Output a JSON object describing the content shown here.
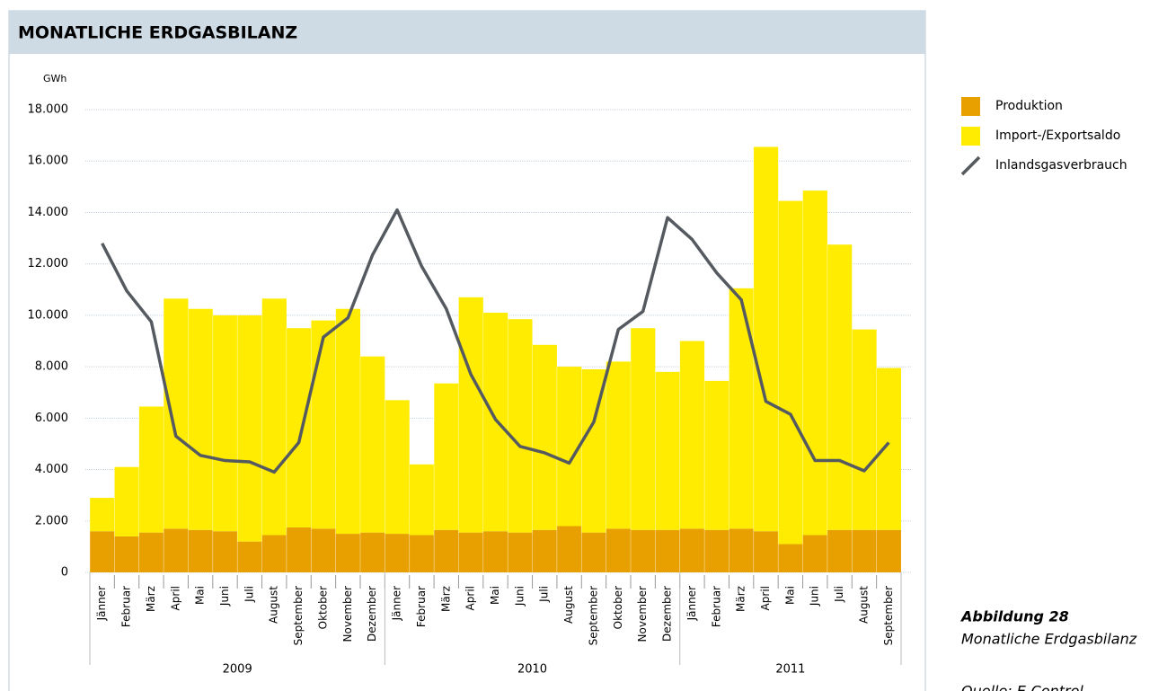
{
  "chart_data": {
    "type": "stacked-bar-line",
    "title": "MONATLICHE ERDGASBILANZ",
    "y_unit": "GWh",
    "categories": [
      "Jänner",
      "Februar",
      "März",
      "April",
      "Mai",
      "Juni",
      "Juli",
      "August",
      "September",
      "Oktober",
      "November",
      "Dezember",
      "Jänner",
      "Februar",
      "März",
      "April",
      "Mai",
      "Juni",
      "Juli",
      "August",
      "September",
      "Oktober",
      "November",
      "Dezember",
      "Jänner",
      "Februar",
      "März",
      "April",
      "Mai",
      "Juni",
      "Juli",
      "August",
      "September"
    ],
    "years": [
      "2009",
      "2010",
      "2011"
    ],
    "series": [
      {
        "name": "Produktion",
        "color": "#e8a000",
        "kind": "bar",
        "values": [
          1600,
          1400,
          1550,
          1700,
          1650,
          1600,
          1200,
          1450,
          1750,
          1700,
          1500,
          1550,
          1500,
          1450,
          1650,
          1550,
          1600,
          1550,
          1650,
          1800,
          1550,
          1700,
          1650,
          1650,
          1700,
          1650,
          1700,
          1600,
          1100,
          1450,
          1650,
          1650,
          1650
        ]
      },
      {
        "name": "Import-/Exportsaldo",
        "color": "#ffec00",
        "kind": "bar",
        "values": [
          1300,
          2700,
          4900,
          8950,
          8600,
          8400,
          8800,
          9200,
          7750,
          8100,
          8750,
          6850,
          5200,
          2750,
          5700,
          9150,
          8500,
          8300,
          7200,
          6200,
          6350,
          6500,
          7850,
          6150,
          7300,
          5800,
          9350,
          14950,
          13350,
          13400,
          11100,
          7800,
          6300
        ]
      },
      {
        "name": "Inlandsgasverbrauch",
        "color": "#555a60",
        "kind": "line",
        "values": [
          12800,
          10950,
          9750,
          5300,
          4550,
          4350,
          4300,
          3900,
          5050,
          9150,
          9900,
          12350,
          14100,
          11900,
          10250,
          7700,
          5950,
          4900,
          4650,
          4250,
          5850,
          9450,
          10150,
          13800,
          12950,
          11650,
          10600,
          6650,
          6150,
          4350,
          4350,
          3950,
          5050
        ]
      }
    ],
    "ylim": [
      0,
      18000
    ],
    "yticks": [
      0,
      {
        "value": 2000,
        "label": "2.000"
      },
      {
        "value": 4000,
        "label": "4.000"
      },
      {
        "value": 6000,
        "label": "6.000"
      },
      {
        "value": 8000,
        "label": "8.000"
      },
      {
        "value": 10000,
        "label": "10.000"
      },
      {
        "value": 12000,
        "label": "12.000"
      },
      {
        "value": 14000,
        "label": "14.000"
      },
      {
        "value": 16000,
        "label": "16.000"
      },
      {
        "value": 18000,
        "label": "18.000"
      }
    ],
    "grid": true,
    "legend": "right",
    "caption": {
      "figure": "Abbildung 28",
      "text": "Monatliche Erdgasbilanz",
      "source": "Quelle: E-Control"
    }
  }
}
